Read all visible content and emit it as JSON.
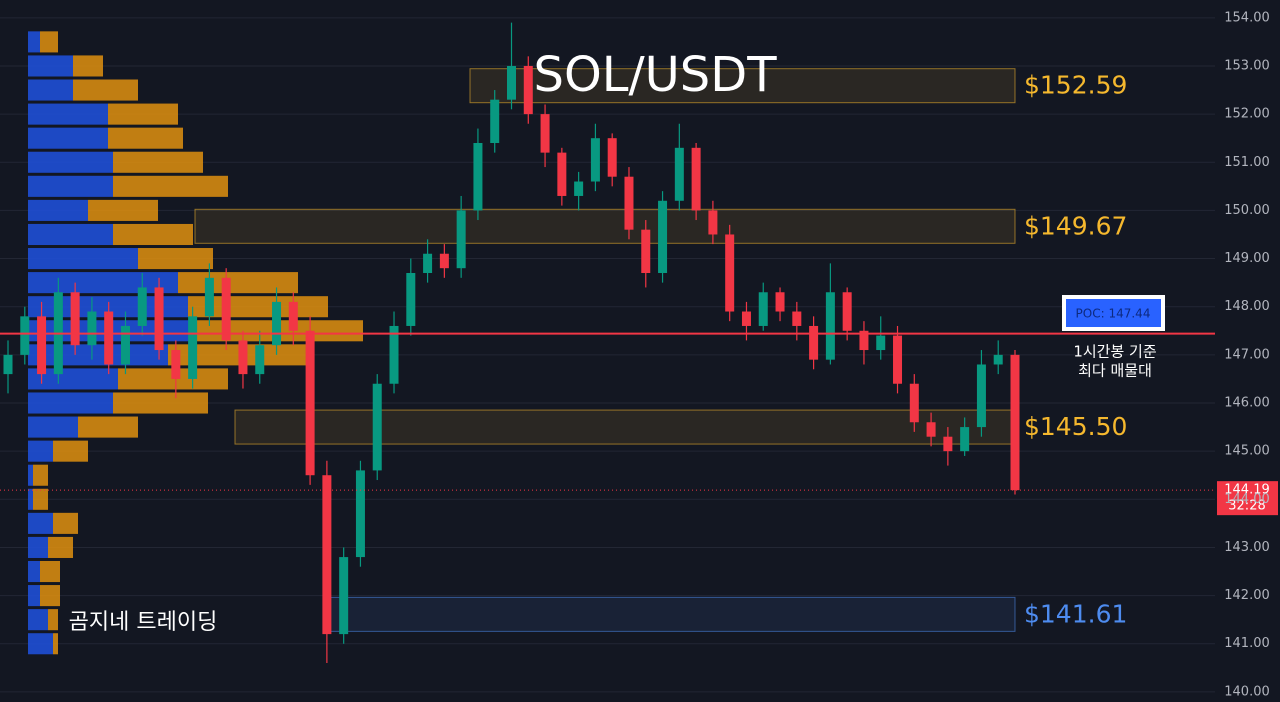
{
  "chart_data": {
    "type": "candlestick",
    "title": "SOL/USDT",
    "watermark": "곰지네 트레이딩",
    "ylim": [
      139.79,
      154.37
    ],
    "yticks": [
      {
        "value": 140,
        "label": "140.00"
      },
      {
        "value": 141,
        "label": "141.00"
      },
      {
        "value": 142,
        "label": "142.00"
      },
      {
        "value": 143,
        "label": "143.00"
      },
      {
        "value": 144,
        "label": "144.00"
      },
      {
        "value": 145,
        "label": "145.00"
      },
      {
        "value": 146,
        "label": "146.00"
      },
      {
        "value": 147,
        "label": "147.00"
      },
      {
        "value": 148,
        "label": "148.00"
      },
      {
        "value": 149,
        "label": "149.00"
      },
      {
        "value": 150,
        "label": "150.00"
      },
      {
        "value": 151,
        "label": "151.00"
      },
      {
        "value": 152,
        "label": "152.00"
      },
      {
        "value": 153,
        "label": "153.00"
      },
      {
        "value": 154,
        "label": "154.00"
      }
    ],
    "grid": true,
    "up_color": "#089981",
    "down_color": "#f23645",
    "open": [
      146.6,
      147.0,
      147.8,
      146.6,
      148.3,
      147.2,
      147.9,
      146.8,
      147.6,
      148.4,
      147.1,
      146.5,
      147.8,
      148.6,
      147.3,
      146.6,
      147.2,
      148.1,
      147.5,
      144.5,
      141.2,
      142.8,
      144.6,
      146.4,
      147.6,
      148.7,
      149.1,
      148.8,
      150.0,
      151.4,
      152.3,
      153.0,
      152.0,
      151.2,
      150.3,
      150.6,
      151.5,
      150.7,
      149.6,
      148.7,
      150.2,
      151.3,
      150.0,
      149.5,
      147.9,
      147.6,
      148.3,
      147.9,
      147.6,
      146.9,
      148.3,
      147.5,
      147.1,
      147.4,
      146.4,
      145.6,
      145.3,
      145.0,
      145.5,
      146.8,
      147.0
    ],
    "high": [
      147.3,
      148.0,
      148.1,
      148.6,
      148.5,
      148.2,
      148.1,
      147.9,
      148.7,
      148.6,
      147.3,
      148.0,
      148.9,
      148.8,
      147.5,
      147.5,
      148.4,
      148.3,
      147.8,
      144.8,
      143.0,
      144.8,
      146.6,
      147.9,
      149.0,
      149.4,
      149.3,
      150.3,
      151.7,
      152.5,
      153.9,
      153.2,
      152.2,
      151.3,
      150.8,
      151.8,
      151.6,
      150.9,
      149.8,
      150.4,
      151.8,
      151.4,
      150.2,
      149.7,
      148.1,
      148.5,
      148.4,
      148.1,
      147.8,
      148.9,
      148.4,
      147.7,
      147.8,
      147.6,
      146.6,
      145.8,
      145.5,
      145.7,
      147.1,
      147.3,
      147.1
    ],
    "low": [
      146.2,
      146.8,
      146.4,
      146.4,
      147.0,
      146.9,
      146.6,
      146.6,
      147.4,
      146.9,
      146.1,
      146.3,
      147.6,
      147.1,
      146.3,
      146.4,
      147.0,
      147.2,
      144.3,
      140.6,
      141.0,
      142.6,
      144.4,
      146.2,
      147.4,
      148.5,
      148.6,
      148.6,
      149.8,
      151.2,
      152.1,
      151.8,
      150.9,
      150.1,
      150.0,
      150.4,
      150.5,
      149.4,
      148.4,
      148.5,
      150.0,
      149.8,
      149.3,
      147.7,
      147.3,
      147.5,
      147.7,
      147.3,
      146.7,
      146.8,
      147.3,
      146.8,
      146.9,
      146.2,
      145.4,
      145.1,
      144.7,
      144.9,
      145.3,
      146.6,
      144.1
    ],
    "close": [
      147.0,
      147.8,
      146.6,
      148.3,
      147.2,
      147.9,
      146.8,
      147.6,
      148.4,
      147.1,
      146.5,
      147.8,
      148.6,
      147.3,
      146.6,
      147.2,
      148.1,
      147.5,
      144.5,
      141.2,
      142.8,
      144.6,
      146.4,
      147.6,
      148.7,
      149.1,
      148.8,
      150.0,
      151.4,
      152.3,
      153.0,
      152.0,
      151.2,
      150.3,
      150.6,
      151.5,
      150.7,
      149.6,
      148.7,
      150.2,
      151.3,
      150.0,
      149.5,
      147.9,
      147.6,
      148.3,
      147.9,
      147.6,
      146.9,
      148.3,
      147.5,
      147.1,
      147.4,
      146.4,
      145.6,
      145.3,
      145.0,
      145.5,
      146.8,
      147.0,
      144.19
    ],
    "volume_profile": {
      "levels": [
        153.5,
        153,
        152.5,
        152,
        151.5,
        151,
        150.5,
        150,
        149.5,
        149,
        148.5,
        148,
        147.5,
        147,
        146.5,
        146,
        145.5,
        145,
        144.5,
        144,
        143.5,
        143,
        142.5,
        142,
        141.5,
        141
      ],
      "buy": [
        12,
        45,
        45,
        80,
        80,
        85,
        85,
        60,
        85,
        110,
        150,
        160,
        165,
        140,
        90,
        85,
        50,
        25,
        5,
        5,
        25,
        20,
        12,
        12,
        20,
        25
      ],
      "sell": [
        18,
        30,
        65,
        70,
        75,
        90,
        115,
        70,
        80,
        75,
        120,
        140,
        170,
        145,
        110,
        95,
        60,
        35,
        15,
        15,
        25,
        25,
        20,
        20,
        10,
        5
      ],
      "buy_color": "#1f4fd6",
      "sell_color": "#e0900f"
    },
    "levels": [
      {
        "value": 152.59,
        "label": "$152.59",
        "color": "#f5b82e"
      },
      {
        "value": 149.67,
        "label": "$149.67",
        "color": "#f5b82e"
      },
      {
        "value": 145.5,
        "label": "$145.50",
        "color": "#f5b82e"
      },
      {
        "value": 141.61,
        "label": "$141.61",
        "color": "#4e8cf0"
      }
    ],
    "poc": {
      "value": 147.44,
      "label": "POC: 147.44",
      "note": [
        "1시간봉 기준",
        "최다 매물대"
      ]
    },
    "last_price": 144.19,
    "countdown": "32:28"
  }
}
